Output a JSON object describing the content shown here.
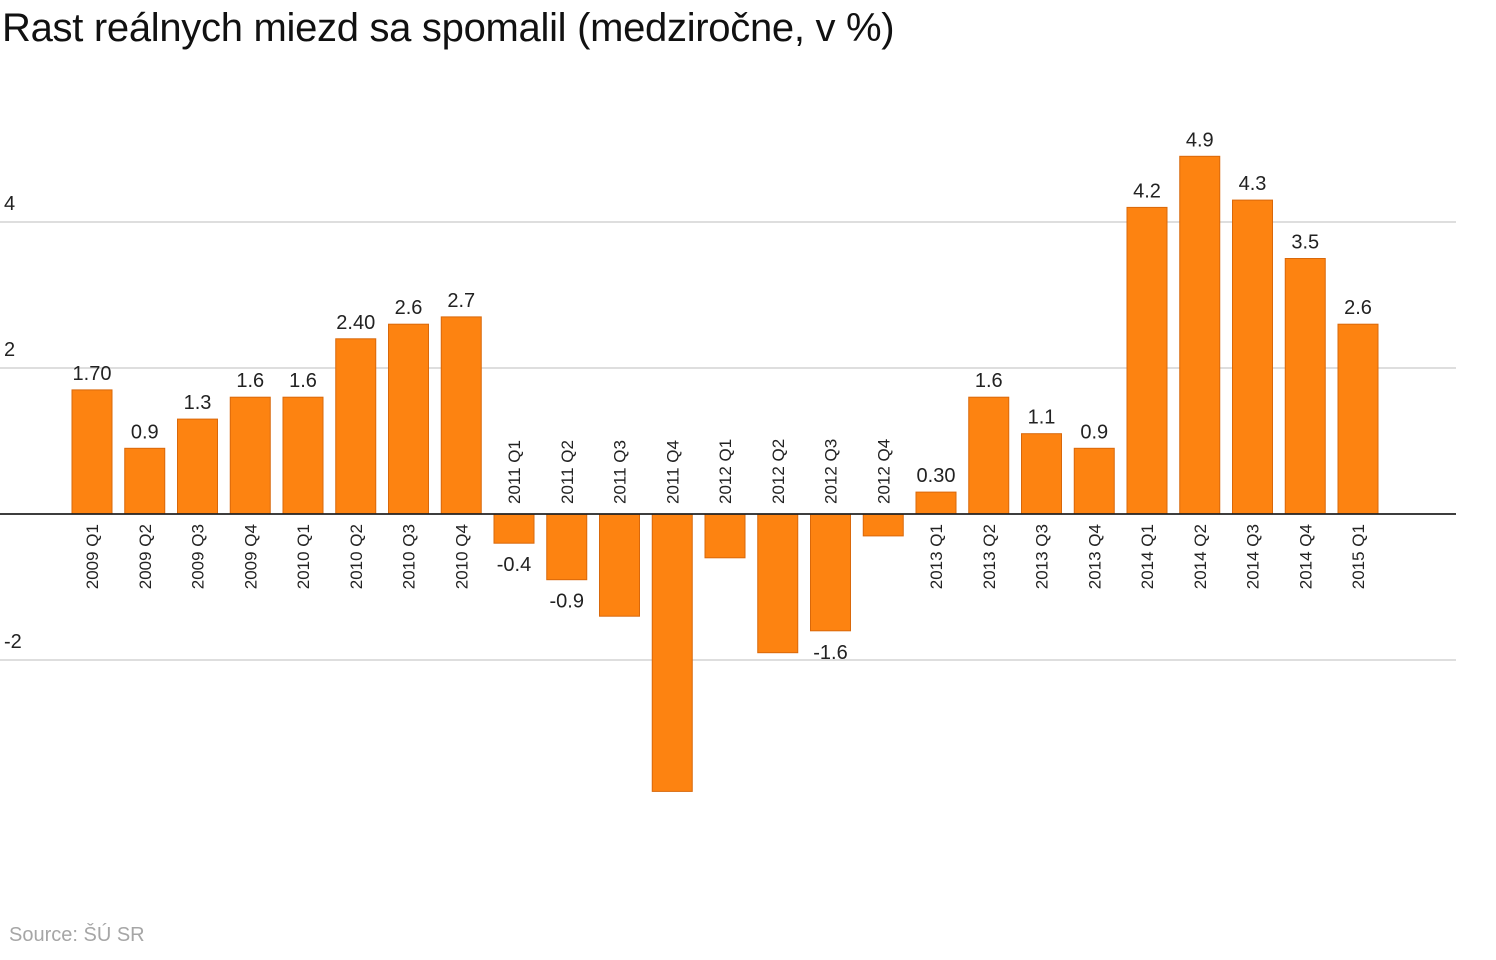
{
  "title": "Rast reálnych miezd sa spomalil (medziročne, v %)",
  "source": "Source: ŠÚ SR",
  "colors": {
    "bar": "#fd8311",
    "bar_stroke": "#d9680a",
    "grid": "#d4d4d4",
    "zero_line": "#222222"
  },
  "chart_data": {
    "type": "bar",
    "title": "Rast reálnych miezd sa spomalil (medziročne, v %)",
    "xlabel": "",
    "ylabel": "",
    "ylim": [
      -4.2,
      5.5
    ],
    "yticks": [
      -2,
      2,
      4
    ],
    "grid": true,
    "categories": [
      "2009 Q1",
      "2009 Q2",
      "2009 Q3",
      "2009 Q4",
      "2010 Q1",
      "2010 Q2",
      "2010 Q3",
      "2010 Q4",
      "2011 Q1",
      "2011 Q2",
      "2011 Q3",
      "2011 Q4",
      "2012 Q1",
      "2012 Q2",
      "2012 Q3",
      "2012 Q4",
      "2013 Q1",
      "2013 Q2",
      "2013 Q3",
      "2013 Q4",
      "2014 Q1",
      "2014 Q2",
      "2014 Q3",
      "2014 Q4",
      "2015 Q1"
    ],
    "values": [
      1.7,
      0.9,
      1.3,
      1.6,
      1.6,
      2.4,
      2.6,
      2.7,
      -0.4,
      -0.9,
      -1.4,
      -3.8,
      -0.6,
      -1.9,
      -1.6,
      -0.3,
      0.3,
      1.6,
      1.1,
      0.9,
      4.2,
      4.9,
      4.3,
      3.5,
      2.6
    ],
    "data_labels": [
      "1.70",
      "0.9",
      "1.3",
      "1.6",
      "1.6",
      "2.40",
      "2.6",
      "2.7",
      "-0.4",
      "-0.9",
      null,
      null,
      null,
      null,
      "-1.6",
      null,
      "0.30",
      "1.6",
      "1.1",
      "0.9",
      "4.2",
      "4.9",
      "4.3",
      "3.5",
      "2.6"
    ]
  }
}
